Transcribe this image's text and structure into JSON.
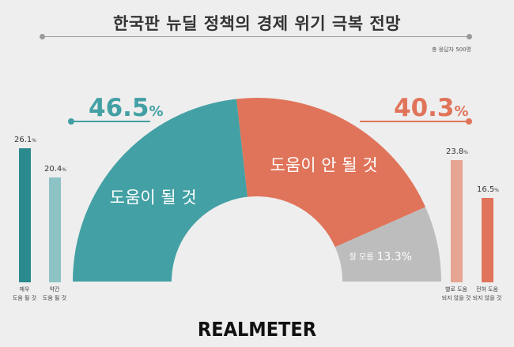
{
  "header": {
    "title": "한국판 뉴딜 정책의 경제 위기 극복 전망",
    "respondents": "총 응답자 500명"
  },
  "chart_data": {
    "type": "pie",
    "semicircle": true,
    "slices": [
      {
        "label": "도움이 될 것",
        "value": 46.5,
        "color": "#43a0a4"
      },
      {
        "label": "도움이 안 될 것",
        "value": 40.3,
        "color": "#e0745a"
      },
      {
        "label": "잘 모름",
        "value": 13.3,
        "color": "#bdbdbd"
      }
    ],
    "slice_values_text": [
      "46.5",
      "40.3",
      "13.3%"
    ],
    "pct_symbol": "%",
    "breakdown": [
      {
        "label_lines": [
          "매우",
          "도움 될 것"
        ],
        "value": 26.1,
        "value_text": "26.1",
        "color": "#2b8a8d"
      },
      {
        "label_lines": [
          "약간",
          "도움 될 것"
        ],
        "value": 20.4,
        "value_text": "20.4",
        "color": "#8ec3c6"
      },
      {
        "label_lines": [
          "별로 도움",
          "되지 않을 것"
        ],
        "value": 23.8,
        "value_text": "23.8",
        "color": "#e6a593"
      },
      {
        "label_lines": [
          "전혀 도움",
          "되지 않을 것"
        ],
        "value": 16.5,
        "value_text": "16.5",
        "color": "#e0745a"
      }
    ]
  },
  "footer": {
    "logo_text": "REALMETER"
  }
}
